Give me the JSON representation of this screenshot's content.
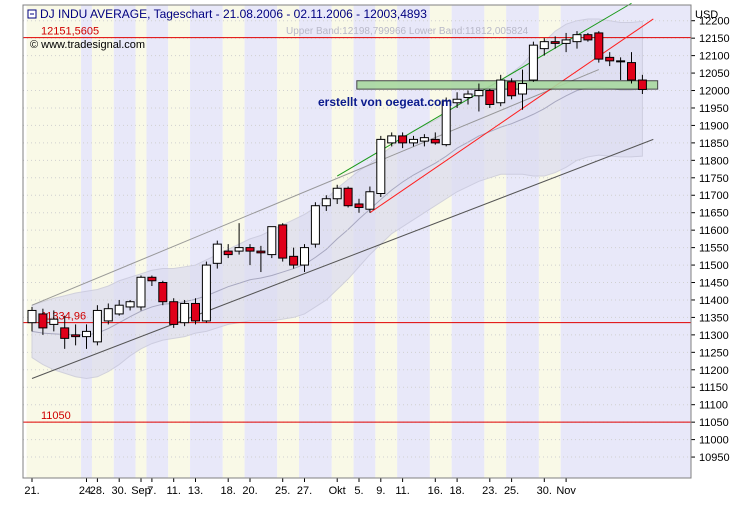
{
  "header": {
    "title": "DJ INDU AVERAGE, Tageschart - 21.08.2006 - 02.11.2006 - 12003,4893",
    "watermark": "© www.tradesignal.com",
    "band_info": "Upper Band:12198,799966 Lower Band:11812,005824",
    "currency": "USD",
    "annotation": "erstellt von oegeat.com"
  },
  "colors": {
    "up_candle": "#ffffff",
    "down_candle": "#e0001a",
    "band_fill": "#dcdcf0",
    "support_line": "#e00000",
    "uptrend_green": "#1a9a1a",
    "uptrend_red": "#ff2020",
    "channel_lines": "#555555",
    "stripe_blue": "#e6e6f8",
    "stripe_yellow": "#f8f8e4",
    "resistance_box": "#a8d8a0"
  },
  "chart_data": {
    "type": "candlestick",
    "title": "DJ INDU AVERAGE, Tageschart - 21.08.2006 - 02.11.2006 - 12003,4893",
    "ylabel": "USD",
    "ylim": [
      10890,
      12245
    ],
    "y_ticks": [
      10950,
      11000,
      11050,
      11100,
      11150,
      11200,
      11250,
      11300,
      11350,
      11400,
      11450,
      11500,
      11550,
      11600,
      11650,
      11700,
      11750,
      11800,
      11850,
      11900,
      11950,
      12000,
      12050,
      12100,
      12150,
      12200
    ],
    "x_tick_labels": [
      {
        "i": 0,
        "label": "21."
      },
      {
        "i": 5,
        "label": "24."
      },
      {
        "i": 6,
        "label": "28."
      },
      {
        "i": 8,
        "label": "30."
      },
      {
        "i": 10,
        "label": "Sep"
      },
      {
        "i": 11,
        "label": "7."
      },
      {
        "i": 13,
        "label": "11."
      },
      {
        "i": 15,
        "label": "13."
      },
      {
        "i": 18,
        "label": "18."
      },
      {
        "i": 20,
        "label": "20."
      },
      {
        "i": 23,
        "label": "25."
      },
      {
        "i": 25,
        "label": "27."
      },
      {
        "i": 28,
        "label": "Okt"
      },
      {
        "i": 30,
        "label": "5."
      },
      {
        "i": 32,
        "label": "9."
      },
      {
        "i": 34,
        "label": "11."
      },
      {
        "i": 37,
        "label": "16."
      },
      {
        "i": 39,
        "label": "18."
      },
      {
        "i": 42,
        "label": "23."
      },
      {
        "i": 44,
        "label": "25."
      },
      {
        "i": 47,
        "label": "30."
      },
      {
        "i": 49,
        "label": "Nov"
      }
    ],
    "candles": [
      {
        "o": 11335,
        "h": 11380,
        "l": 11310,
        "c": 11370
      },
      {
        "o": 11360,
        "h": 11375,
        "l": 11300,
        "c": 11320
      },
      {
        "o": 11330,
        "h": 11370,
        "l": 11310,
        "c": 11345
      },
      {
        "o": 11320,
        "h": 11355,
        "l": 11260,
        "c": 11290
      },
      {
        "o": 11300,
        "h": 11330,
        "l": 11270,
        "c": 11295
      },
      {
        "o": 11295,
        "h": 11330,
        "l": 11260,
        "c": 11310
      },
      {
        "o": 11280,
        "h": 11385,
        "l": 11270,
        "c": 11370
      },
      {
        "o": 11340,
        "h": 11390,
        "l": 11330,
        "c": 11375
      },
      {
        "o": 11360,
        "h": 11400,
        "l": 11355,
        "c": 11385
      },
      {
        "o": 11380,
        "h": 11400,
        "l": 11370,
        "c": 11395
      },
      {
        "o": 11380,
        "h": 11470,
        "l": 11370,
        "c": 11465
      },
      {
        "o": 11465,
        "h": 11470,
        "l": 11440,
        "c": 11455
      },
      {
        "o": 11450,
        "h": 11455,
        "l": 11385,
        "c": 11395
      },
      {
        "o": 11395,
        "h": 11405,
        "l": 11320,
        "c": 11330
      },
      {
        "o": 11335,
        "h": 11400,
        "l": 11325,
        "c": 11390
      },
      {
        "o": 11390,
        "h": 11405,
        "l": 11330,
        "c": 11340
      },
      {
        "o": 11340,
        "h": 11510,
        "l": 11335,
        "c": 11500
      },
      {
        "o": 11505,
        "h": 11570,
        "l": 11490,
        "c": 11560
      },
      {
        "o": 11540,
        "h": 11560,
        "l": 11520,
        "c": 11530
      },
      {
        "o": 11540,
        "h": 11620,
        "l": 11530,
        "c": 11550
      },
      {
        "o": 11550,
        "h": 11560,
        "l": 11500,
        "c": 11540
      },
      {
        "o": 11540,
        "h": 11555,
        "l": 11480,
        "c": 11535
      },
      {
        "o": 11530,
        "h": 11610,
        "l": 11520,
        "c": 11610
      },
      {
        "o": 11615,
        "h": 11620,
        "l": 11510,
        "c": 11520
      },
      {
        "o": 11525,
        "h": 11550,
        "l": 11490,
        "c": 11500
      },
      {
        "o": 11500,
        "h": 11560,
        "l": 11480,
        "c": 11550
      },
      {
        "o": 11560,
        "h": 11680,
        "l": 11550,
        "c": 11670
      },
      {
        "o": 11670,
        "h": 11700,
        "l": 11655,
        "c": 11690
      },
      {
        "o": 11690,
        "h": 11730,
        "l": 11675,
        "c": 11720
      },
      {
        "o": 11720,
        "h": 11725,
        "l": 11665,
        "c": 11670
      },
      {
        "o": 11675,
        "h": 11690,
        "l": 11650,
        "c": 11665
      },
      {
        "o": 11660,
        "h": 11725,
        "l": 11650,
        "c": 11710
      },
      {
        "o": 11705,
        "h": 11870,
        "l": 11695,
        "c": 11860
      },
      {
        "o": 11850,
        "h": 11880,
        "l": 11840,
        "c": 11870
      },
      {
        "o": 11870,
        "h": 11880,
        "l": 11835,
        "c": 11850
      },
      {
        "o": 11850,
        "h": 11870,
        "l": 11840,
        "c": 11860
      },
      {
        "o": 11855,
        "h": 11875,
        "l": 11840,
        "c": 11865
      },
      {
        "o": 11860,
        "h": 11880,
        "l": 11845,
        "c": 11850
      },
      {
        "o": 11845,
        "h": 11980,
        "l": 11840,
        "c": 11970
      },
      {
        "o": 11965,
        "h": 11995,
        "l": 11950,
        "c": 11975
      },
      {
        "o": 11980,
        "h": 12000,
        "l": 11960,
        "c": 11990
      },
      {
        "o": 11985,
        "h": 12020,
        "l": 11940,
        "c": 12000
      },
      {
        "o": 12000,
        "h": 12005,
        "l": 11950,
        "c": 11960
      },
      {
        "o": 11965,
        "h": 12045,
        "l": 11955,
        "c": 12030
      },
      {
        "o": 12025,
        "h": 12035,
        "l": 11975,
        "c": 11985
      },
      {
        "o": 11990,
        "h": 12060,
        "l": 11945,
        "c": 12020
      },
      {
        "o": 12030,
        "h": 12140,
        "l": 12025,
        "c": 12130
      },
      {
        "o": 12120,
        "h": 12150,
        "l": 12100,
        "c": 12140
      },
      {
        "o": 12140,
        "h": 12155,
        "l": 12120,
        "c": 12135
      },
      {
        "o": 12135,
        "h": 12165,
        "l": 12110,
        "c": 12145
      },
      {
        "o": 12140,
        "h": 12170,
        "l": 12120,
        "c": 12160
      },
      {
        "o": 12160,
        "h": 12165,
        "l": 12140,
        "c": 12145
      },
      {
        "o": 12165,
        "h": 12170,
        "l": 12080,
        "c": 12090
      },
      {
        "o": 12095,
        "h": 12110,
        "l": 12070,
        "c": 12085
      },
      {
        "o": 12085,
        "h": 12095,
        "l": 12030,
        "c": 12085
      },
      {
        "o": 12080,
        "h": 12110,
        "l": 12020,
        "c": 12030
      },
      {
        "o": 12030,
        "h": 12045,
        "l": 11990,
        "c": 12003
      }
    ],
    "horizontal_lines": [
      {
        "value": 12151.5605,
        "label": "12151,5605"
      },
      {
        "value": 11334.96,
        "label": "11334,96"
      },
      {
        "value": 11050,
        "label": "11050"
      }
    ],
    "trend_lines": [
      {
        "name": "channel_upper",
        "from": [
          0,
          11385
        ],
        "to": [
          52,
          12060
        ]
      },
      {
        "name": "channel_lower",
        "from": [
          0,
          11175
        ],
        "to": [
          57,
          11860
        ]
      },
      {
        "name": "uptrend_green",
        "from": [
          28,
          11755
        ],
        "to": [
          55,
          12250
        ]
      },
      {
        "name": "uptrend_red",
        "from": [
          31,
          11650
        ],
        "to": [
          57,
          12205
        ]
      }
    ],
    "bollinger_upper": [
      11385,
      11395,
      11405,
      11412,
      11420,
      11425,
      11430,
      11440,
      11455,
      11465,
      11475,
      11485,
      11490,
      11490,
      11495,
      11500,
      11515,
      11530,
      11545,
      11560,
      11575,
      11585,
      11600,
      11615,
      11630,
      11645,
      11665,
      11690,
      11720,
      11745,
      11770,
      11790,
      11815,
      11840,
      11865,
      11885,
      11900,
      11915,
      11935,
      11960,
      11980,
      12000,
      12015,
      12030,
      12050,
      12075,
      12110,
      12140,
      12170,
      12190,
      12200,
      12205,
      12205,
      12200,
      12195,
      12195,
      12198
    ],
    "bollinger_lower": [
      11235,
      11215,
      11200,
      11190,
      11180,
      11175,
      11180,
      11195,
      11215,
      11240,
      11260,
      11275,
      11285,
      11290,
      11295,
      11305,
      11310,
      11320,
      11330,
      11335,
      11340,
      11340,
      11340,
      11345,
      11350,
      11360,
      11380,
      11400,
      11430,
      11460,
      11495,
      11530,
      11560,
      11590,
      11610,
      11630,
      11650,
      11670,
      11690,
      11710,
      11725,
      11740,
      11750,
      11760,
      11760,
      11760,
      11755,
      11755,
      11765,
      11780,
      11800,
      11810,
      11815,
      11812,
      11810,
      11810,
      11812
    ],
    "bollinger_mid": [
      11310,
      11305,
      11303,
      11301,
      11300,
      11300,
      11305,
      11318,
      11335,
      11352,
      11368,
      11380,
      11388,
      11390,
      11395,
      11402,
      11412,
      11425,
      11438,
      11448,
      11458,
      11463,
      11470,
      11480,
      11490,
      11502,
      11522,
      11545,
      11575,
      11602,
      11632,
      11660,
      11688,
      11715,
      11738,
      11758,
      11775,
      11792,
      11812,
      11835,
      11852,
      11870,
      11882,
      11895,
      11905,
      11918,
      11932,
      11948,
      11968,
      11985,
      12000,
      12008,
      12010,
      12006,
      12002,
      12002,
      12005
    ],
    "resistance_zone": {
      "from": 29.8,
      "to": 57.4,
      "low": 12004,
      "high": 12028
    }
  }
}
